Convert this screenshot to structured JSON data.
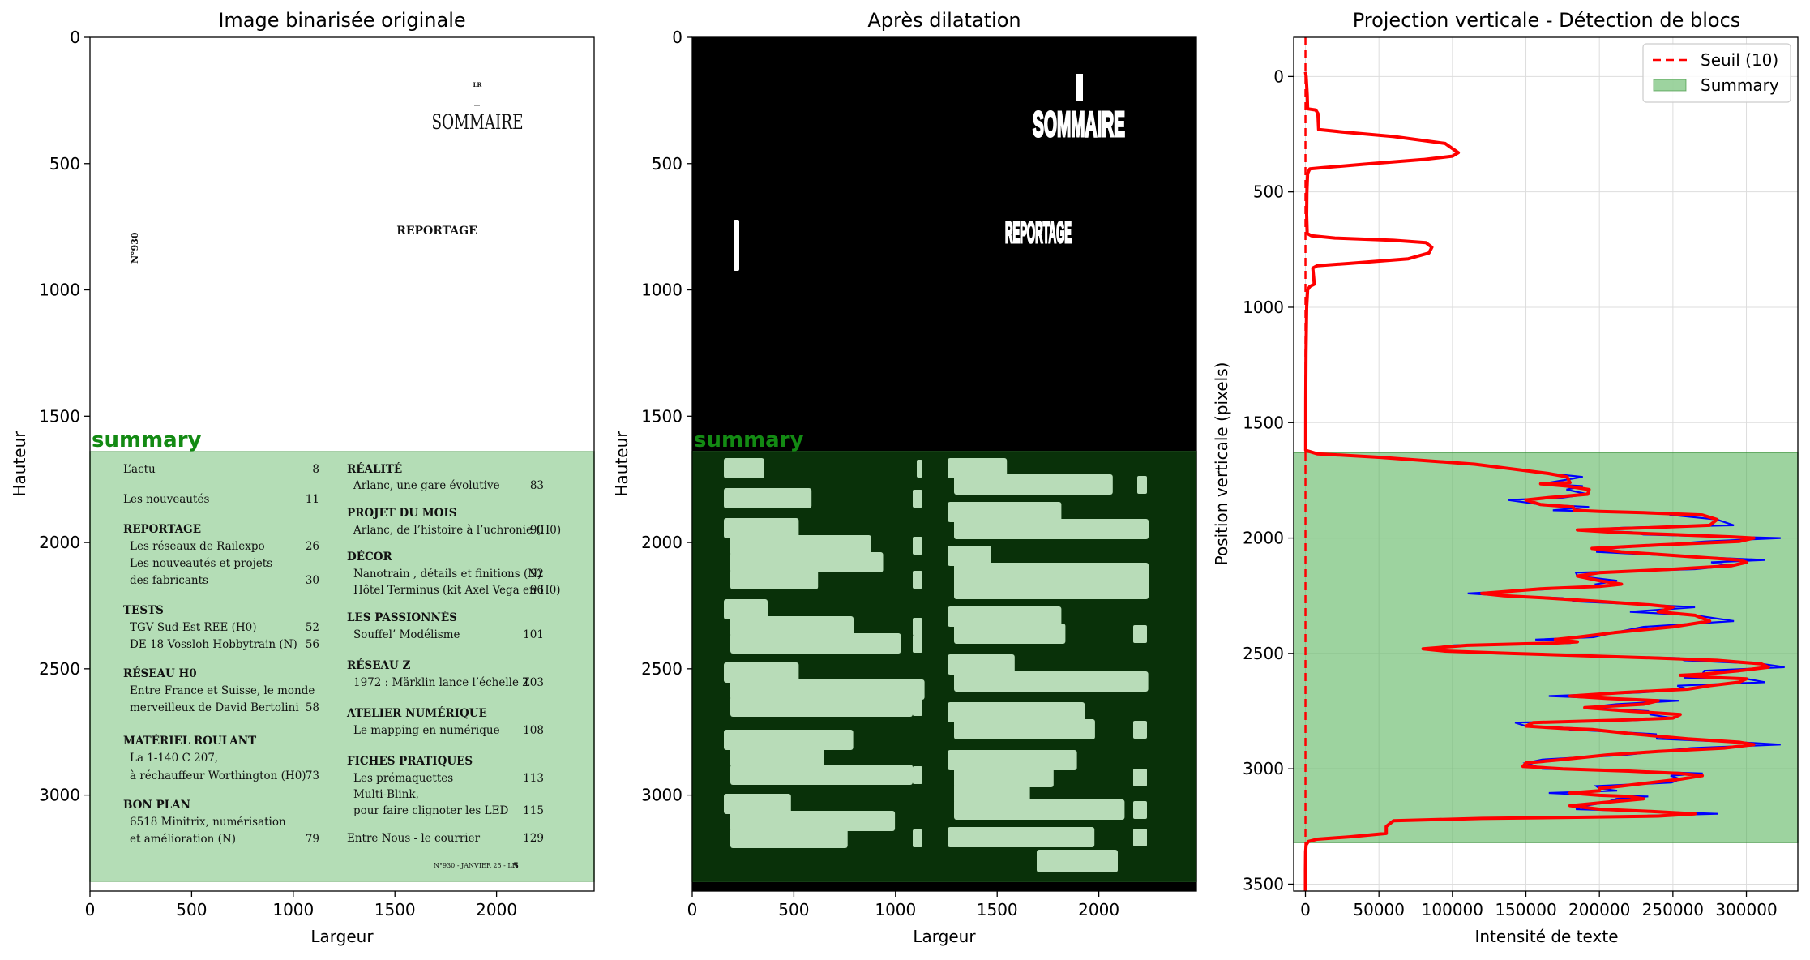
{
  "chart_data": [
    {
      "type": "image",
      "title": "Image binarisée originale",
      "xlabel": "Largeur",
      "ylabel": "Hauteur",
      "xlim": [
        0,
        2480
      ],
      "ylim": [
        3380,
        0
      ],
      "xticks": [
        0,
        500,
        1000,
        1500,
        2000
      ],
      "yticks": [
        0,
        500,
        1000,
        1500,
        2000,
        2500,
        3000
      ],
      "summary_label": "summary",
      "summary_box": {
        "x0": 0,
        "x1": 2480,
        "y0": 1630,
        "y1": 3310
      },
      "page_text": {
        "lr": "LR",
        "heading": "SOMMAIRE",
        "reportage": "REPORTAGE",
        "issue": "N°930",
        "footer": "N°930 - JANVIER 25 - LR",
        "footer_page": "5",
        "left_column": [
          {
            "text": "L’actu",
            "page": "8",
            "bold": false,
            "indent": false
          },
          {
            "text": "Les nouveautés",
            "page": "11",
            "bold": false,
            "indent": false
          },
          {
            "text": "REPORTAGE",
            "page": "",
            "bold": true,
            "indent": false
          },
          {
            "text": "Les réseaux de Railexpo",
            "page": "26",
            "bold": false,
            "indent": true
          },
          {
            "text": "Les nouveautés et projets",
            "page": "",
            "bold": false,
            "indent": true
          },
          {
            "text": "des fabricants",
            "page": "30",
            "bold": false,
            "indent": true
          },
          {
            "text": "TESTS",
            "page": "",
            "bold": true,
            "indent": false
          },
          {
            "text": "TGV Sud-Est REE (H0)",
            "page": "52",
            "bold": false,
            "indent": true
          },
          {
            "text": "DE 18 Vossloh Hobbytrain (N)",
            "page": "56",
            "bold": false,
            "indent": true
          },
          {
            "text": "RÉSEAU H0",
            "page": "",
            "bold": true,
            "indent": false
          },
          {
            "text": "Entre France et Suisse, le monde",
            "page": "",
            "bold": false,
            "indent": true
          },
          {
            "text": "merveilleux de David Bertolini",
            "page": "58",
            "bold": false,
            "indent": true
          },
          {
            "text": "MATÉRIEL ROULANT",
            "page": "",
            "bold": true,
            "indent": false
          },
          {
            "text": "La 1-140 C 207,",
            "page": "",
            "bold": false,
            "indent": true
          },
          {
            "text": "à réchauffeur Worthington (H0)",
            "page": "73",
            "bold": false,
            "indent": true
          },
          {
            "text": "BON PLAN",
            "page": "",
            "bold": true,
            "indent": false
          },
          {
            "text": "6518 Minitrix, numérisation",
            "page": "",
            "bold": false,
            "indent": true
          },
          {
            "text": "et amélioration (N)",
            "page": "79",
            "bold": false,
            "indent": true
          }
        ],
        "right_column": [
          {
            "text": "RÉALITÉ",
            "page": "",
            "bold": true,
            "indent": false
          },
          {
            "text": "Arlanc, une gare évolutive",
            "page": "83",
            "bold": false,
            "indent": true
          },
          {
            "text": "PROJET DU MOIS",
            "page": "",
            "bold": true,
            "indent": false
          },
          {
            "text": "Arlanc, de l’histoire à l’uchronie (H0)",
            "page": "90",
            "bold": false,
            "indent": true
          },
          {
            "text": "DÉCOR",
            "page": "",
            "bold": true,
            "indent": false
          },
          {
            "text": "Nanotrain , détails et finitions (N)",
            "page": "92",
            "bold": false,
            "indent": true
          },
          {
            "text": "Hôtel Terminus (kit Axel Vega en H0)",
            "page": "96",
            "bold": false,
            "indent": true
          },
          {
            "text": "LES PASSIONNÉS",
            "page": "",
            "bold": true,
            "indent": false
          },
          {
            "text": "Souffel’ Modélisme",
            "page": "101",
            "bold": false,
            "indent": true
          },
          {
            "text": "RÉSEAU Z",
            "page": "",
            "bold": true,
            "indent": false
          },
          {
            "text": "1972 : Märklin lance l’échelle Z",
            "page": "103",
            "bold": false,
            "indent": true
          },
          {
            "text": "ATELIER NUMÉRIQUE",
            "page": "",
            "bold": true,
            "indent": false
          },
          {
            "text": "Le mapping en numérique",
            "page": "108",
            "bold": false,
            "indent": true
          },
          {
            "text": "FICHES PRATIQUES",
            "page": "",
            "bold": true,
            "indent": false
          },
          {
            "text": "Les prémaquettes",
            "page": "113",
            "bold": false,
            "indent": true
          },
          {
            "text": "Multi-Blink,",
            "page": "",
            "bold": false,
            "indent": true
          },
          {
            "text": "pour faire clignoter les LED",
            "page": "115",
            "bold": false,
            "indent": true
          },
          {
            "text": "Entre Nous - le courrier",
            "page": "129",
            "bold": false,
            "indent": false
          }
        ]
      }
    },
    {
      "type": "image",
      "title": "Après dilatation",
      "xlabel": "Largeur",
      "ylabel": "Hauteur",
      "xlim": [
        0,
        2480
      ],
      "ylim": [
        3380,
        0
      ],
      "xticks": [
        0,
        500,
        1000,
        1500,
        2000
      ],
      "yticks": [
        0,
        500,
        1000,
        1500,
        2000,
        2500,
        3000
      ],
      "summary_label": "summary",
      "summary_box": {
        "x0": 0,
        "x1": 2480,
        "y0": 1630,
        "y1": 3310
      },
      "dilated_text": {
        "heading": "SOMMAIRE",
        "reportage": "REPORTAGE"
      }
    },
    {
      "type": "line",
      "title": "Projection verticale - Détection de blocs",
      "xlabel": "Intensité de texte",
      "ylabel": "Position verticale (pixels)",
      "xlim": [
        -8000,
        335000
      ],
      "ylim": [
        3530,
        -170
      ],
      "xticks": [
        0,
        50000,
        100000,
        150000,
        200000,
        250000,
        300000
      ],
      "yticks": [
        0,
        500,
        1000,
        1500,
        2000,
        2500,
        3000,
        3500
      ],
      "grid": true,
      "legend_placement": "top-right",
      "threshold": 10,
      "summary_band": [
        1630,
        3320
      ],
      "legend": [
        {
          "label": "Seuil (10)",
          "style": "dashed-line",
          "color": "#ff0000"
        },
        {
          "label": "Summary",
          "style": "patch",
          "color": "#4caf50"
        }
      ],
      "series_raw_color": "#0000ff",
      "series_smooth_color": "#ff0000",
      "profile": [
        [
          0,
          -20
        ],
        [
          500,
          0
        ],
        [
          1200,
          80
        ],
        [
          1500,
          140
        ],
        [
          7000,
          145
        ],
        [
          8500,
          160
        ],
        [
          9000,
          230
        ],
        [
          25000,
          240
        ],
        [
          60000,
          260
        ],
        [
          95000,
          290
        ],
        [
          104000,
          330
        ],
        [
          100000,
          345
        ],
        [
          80000,
          360
        ],
        [
          40000,
          380
        ],
        [
          12000,
          395
        ],
        [
          3000,
          400
        ],
        [
          1500,
          420
        ],
        [
          1000,
          500
        ],
        [
          800,
          600
        ],
        [
          1200,
          680
        ],
        [
          4000,
          690
        ],
        [
          20000,
          700
        ],
        [
          60000,
          710
        ],
        [
          82000,
          720
        ],
        [
          86000,
          740
        ],
        [
          84000,
          765
        ],
        [
          70000,
          790
        ],
        [
          30000,
          810
        ],
        [
          8000,
          820
        ],
        [
          5000,
          830
        ],
        [
          6000,
          900
        ],
        [
          3000,
          910
        ],
        [
          1500,
          925
        ],
        [
          800,
          1000
        ],
        [
          400,
          1200
        ],
        [
          200,
          1400
        ],
        [
          150,
          1620
        ],
        [
          8000,
          1635
        ],
        [
          50000,
          1650
        ],
        [
          115000,
          1680
        ],
        [
          140000,
          1700
        ],
        [
          165000,
          1720
        ],
        [
          178000,
          1735
        ],
        [
          180000,
          1760
        ],
        [
          160000,
          1765
        ],
        [
          178000,
          1775
        ],
        [
          193000,
          1790
        ],
        [
          192000,
          1810
        ],
        [
          165000,
          1825
        ],
        [
          150000,
          1835
        ],
        [
          160000,
          1855
        ],
        [
          182000,
          1865
        ],
        [
          183000,
          1880
        ],
        [
          200000,
          1885
        ],
        [
          230000,
          1890
        ],
        [
          270000,
          1900
        ],
        [
          280000,
          1920
        ],
        [
          275000,
          1945
        ],
        [
          235000,
          1955
        ],
        [
          185000,
          1965
        ],
        [
          210000,
          1975
        ],
        [
          250000,
          1985
        ],
        [
          290000,
          1995
        ],
        [
          305000,
          2000
        ],
        [
          295000,
          2015
        ],
        [
          240000,
          2030
        ],
        [
          195000,
          2045
        ],
        [
          215000,
          2060
        ],
        [
          260000,
          2080
        ],
        [
          295000,
          2095
        ],
        [
          300000,
          2105
        ],
        [
          290000,
          2120
        ],
        [
          250000,
          2135
        ],
        [
          200000,
          2150
        ],
        [
          185000,
          2165
        ],
        [
          200000,
          2185
        ],
        [
          215000,
          2200
        ],
        [
          200000,
          2210
        ],
        [
          160000,
          2220
        ],
        [
          120000,
          2240
        ],
        [
          135000,
          2250
        ],
        [
          165000,
          2260
        ],
        [
          200000,
          2275
        ],
        [
          235000,
          2290
        ],
        [
          250000,
          2300
        ],
        [
          240000,
          2320
        ],
        [
          265000,
          2335
        ],
        [
          275000,
          2360
        ],
        [
          250000,
          2385
        ],
        [
          210000,
          2410
        ],
        [
          185000,
          2430
        ],
        [
          170000,
          2440
        ],
        [
          185000,
          2450
        ],
        [
          170000,
          2455
        ],
        [
          110000,
          2465
        ],
        [
          80000,
          2480
        ],
        [
          95000,
          2490
        ],
        [
          140000,
          2500
        ],
        [
          190000,
          2510
        ],
        [
          240000,
          2520
        ],
        [
          280000,
          2530
        ],
        [
          310000,
          2545
        ],
        [
          315000,
          2560
        ],
        [
          295000,
          2575
        ],
        [
          270000,
          2590
        ],
        [
          255000,
          2595
        ],
        [
          280000,
          2605
        ],
        [
          300000,
          2610
        ],
        [
          295000,
          2625
        ],
        [
          275000,
          2640
        ],
        [
          260000,
          2655
        ],
        [
          215000,
          2670
        ],
        [
          180000,
          2685
        ],
        [
          205000,
          2695
        ],
        [
          240000,
          2705
        ],
        [
          230000,
          2720
        ],
        [
          190000,
          2735
        ],
        [
          220000,
          2750
        ],
        [
          255000,
          2765
        ],
        [
          250000,
          2780
        ],
        [
          210000,
          2790
        ],
        [
          155000,
          2800
        ],
        [
          150000,
          2815
        ],
        [
          175000,
          2825
        ],
        [
          195000,
          2830
        ],
        [
          210000,
          2840
        ],
        [
          225000,
          2850
        ],
        [
          260000,
          2870
        ],
        [
          295000,
          2885
        ],
        [
          305000,
          2895
        ],
        [
          285000,
          2910
        ],
        [
          240000,
          2925
        ],
        [
          205000,
          2940
        ],
        [
          175000,
          2960
        ],
        [
          150000,
          2975
        ],
        [
          148000,
          2990
        ],
        [
          175000,
          3000
        ],
        [
          220000,
          3010
        ],
        [
          255000,
          3020
        ],
        [
          270000,
          3030
        ],
        [
          255000,
          3045
        ],
        [
          235000,
          3060
        ],
        [
          215000,
          3075
        ],
        [
          200000,
          3085
        ],
        [
          200000,
          3095
        ],
        [
          180000,
          3105
        ],
        [
          200000,
          3115
        ],
        [
          220000,
          3120
        ],
        [
          230000,
          3130
        ],
        [
          205000,
          3145
        ],
        [
          180000,
          3160
        ],
        [
          200000,
          3175
        ],
        [
          235000,
          3185
        ],
        [
          265000,
          3195
        ],
        [
          240000,
          3205
        ],
        [
          190000,
          3210
        ],
        [
          120000,
          3215
        ],
        [
          60000,
          3225
        ],
        [
          55000,
          3250
        ],
        [
          55000,
          3280
        ],
        [
          30000,
          3295
        ],
        [
          8000,
          3305
        ],
        [
          2000,
          3315
        ],
        [
          500,
          3330
        ],
        [
          100,
          3360
        ],
        [
          50,
          3400
        ],
        [
          0,
          3440
        ],
        [
          0,
          3530
        ]
      ]
    }
  ]
}
